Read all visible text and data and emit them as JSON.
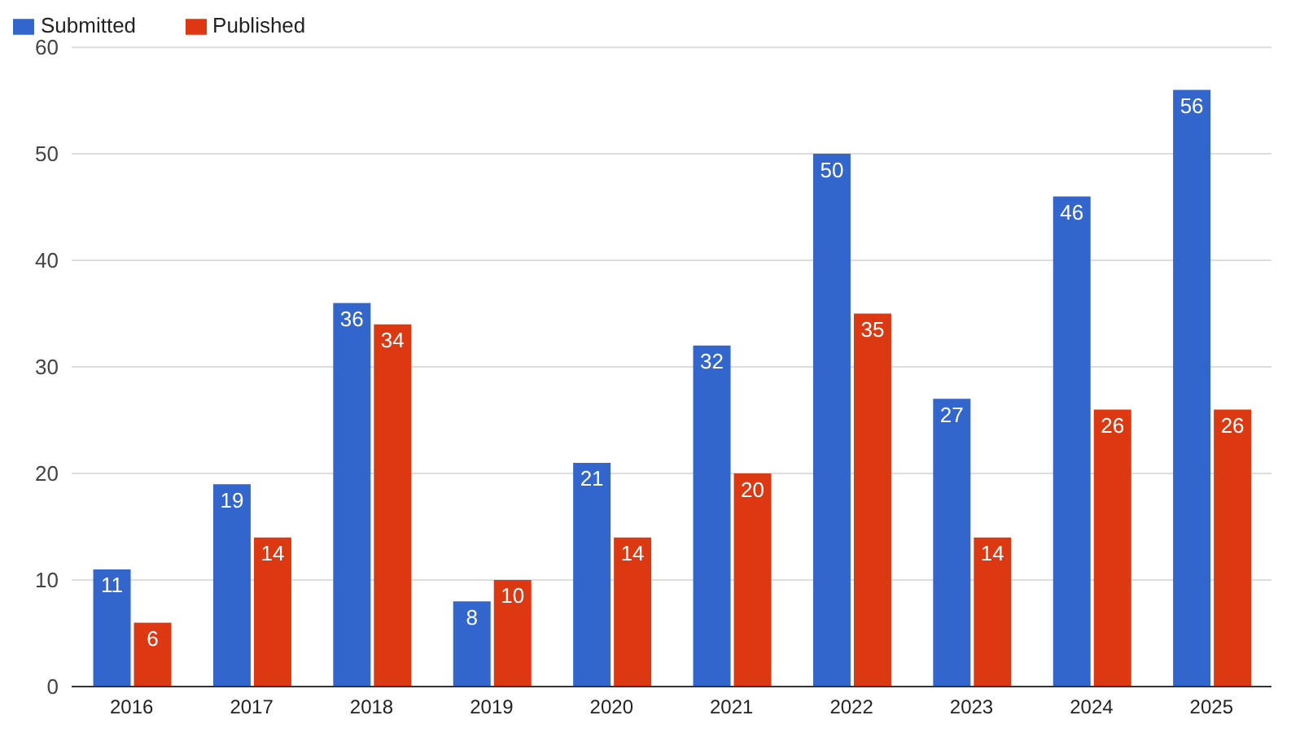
{
  "chart_data": {
    "type": "bar",
    "categories": [
      "2016",
      "2017",
      "2018",
      "2019",
      "2020",
      "2021",
      "2022",
      "2023",
      "2024",
      "2025"
    ],
    "series": [
      {
        "name": "Submitted",
        "color": "#3366cc",
        "values": [
          11,
          19,
          36,
          8,
          21,
          32,
          50,
          27,
          46,
          56
        ]
      },
      {
        "name": "Published",
        "color": "#dc3912",
        "values": [
          6,
          14,
          34,
          10,
          14,
          20,
          35,
          14,
          26,
          26
        ]
      }
    ],
    "ylim": [
      0,
      60
    ],
    "yticks": [
      0,
      10,
      20,
      30,
      40,
      50,
      60
    ],
    "grid": "y",
    "legend": "top left",
    "data_labels": true
  }
}
